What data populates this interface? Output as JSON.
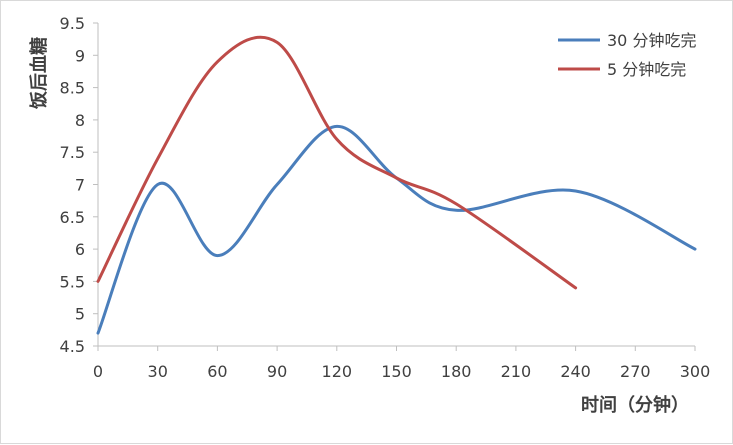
{
  "chart_data": {
    "type": "line",
    "title": "",
    "xlabel": "时间（分钟）",
    "ylabel": "饭后血糖",
    "xlim": [
      0,
      300
    ],
    "ylim": [
      4.5,
      9.5
    ],
    "x_ticks": [
      "0",
      "30",
      "60",
      "90",
      "120",
      "150",
      "180",
      "210",
      "240",
      "270",
      "300"
    ],
    "y_ticks": [
      "4.5",
      "5",
      "5.5",
      "6",
      "6.5",
      "7",
      "7.5",
      "8",
      "8.5",
      "9",
      "9.5"
    ],
    "grid": false,
    "legend_position": "top-right",
    "series": [
      {
        "name": "30 分钟吃完",
        "color": "#4a7ebb",
        "x": [
          0,
          30,
          60,
          90,
          120,
          150,
          180,
          240,
          300
        ],
        "y": [
          4.7,
          7.0,
          5.9,
          7.0,
          7.9,
          7.1,
          6.6,
          6.9,
          6.0
        ]
      },
      {
        "name": "5 分钟吃完",
        "color": "#be4b48",
        "x": [
          0,
          30,
          60,
          90,
          120,
          150,
          180,
          240
        ],
        "y": [
          5.5,
          7.4,
          8.9,
          9.2,
          7.7,
          7.1,
          6.7,
          5.4
        ]
      }
    ]
  }
}
